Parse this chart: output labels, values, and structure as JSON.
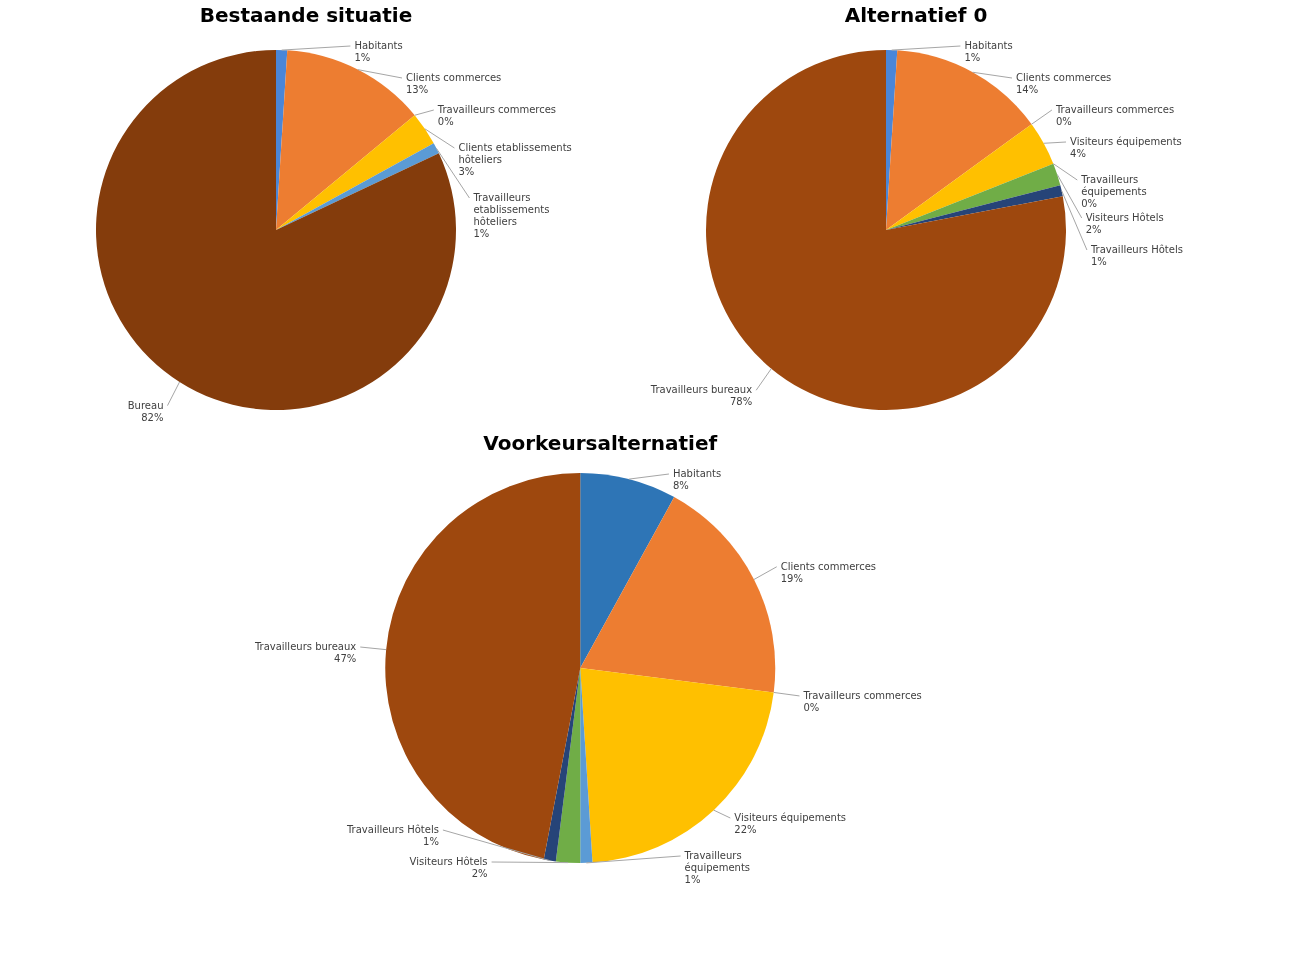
{
  "chart_data": [
    {
      "type": "pie",
      "title": "Bestaande situatie",
      "categories": [
        "Habitants",
        "Clients commerces",
        "Travailleurs commerces",
        "Clients etablissements hôteliers",
        "Travailleurs etablissements hôteliers",
        "Bureau"
      ],
      "values": [
        1,
        13,
        0,
        3,
        1,
        82
      ],
      "value_labels": [
        "1%",
        "13%",
        "0%",
        "3%",
        "1%",
        "82%"
      ],
      "colors": [
        "#4a86d8",
        "#ed7d31",
        "#a5a5a5",
        "#ffc000",
        "#5b9bd5",
        "#843c0c"
      ]
    },
    {
      "type": "pie",
      "title": "Alternatief 0",
      "categories": [
        "Habitants",
        "Clients commerces",
        "Travailleurs commerces",
        "Visiteurs équipements",
        "Travailleurs équipements",
        "Visiteurs Hôtels",
        "Travailleurs Hôtels",
        "Travailleurs bureaux"
      ],
      "values": [
        1,
        14,
        0,
        4,
        0,
        2,
        1,
        78
      ],
      "value_labels": [
        "1%",
        "14%",
        "0%",
        "4%",
        "0%",
        "2%",
        "1%",
        "78%"
      ],
      "colors": [
        "#4a86d8",
        "#ed7d31",
        "#a5a5a5",
        "#ffc000",
        "#5b9bd5",
        "#70ad47",
        "#264478",
        "#9e480e"
      ]
    },
    {
      "type": "pie",
      "title": "Voorkeursalternatief",
      "categories": [
        "Habitants",
        "Clients commerces",
        "Travailleurs commerces",
        "Visiteurs équipements",
        "Travailleurs équipements",
        "Visiteurs Hôtels",
        "Travailleurs Hôtels",
        "Travailleurs bureaux"
      ],
      "values": [
        8,
        19,
        0,
        22,
        1,
        2,
        1,
        47
      ],
      "value_labels": [
        "8%",
        "19%",
        "0%",
        "22%",
        "1%",
        "2%",
        "1%",
        "47%"
      ],
      "colors": [
        "#2e75b6",
        "#ed7d31",
        "#a5a5a5",
        "#ffc000",
        "#5b9bd5",
        "#70ad47",
        "#264478",
        "#9e480e"
      ]
    }
  ]
}
